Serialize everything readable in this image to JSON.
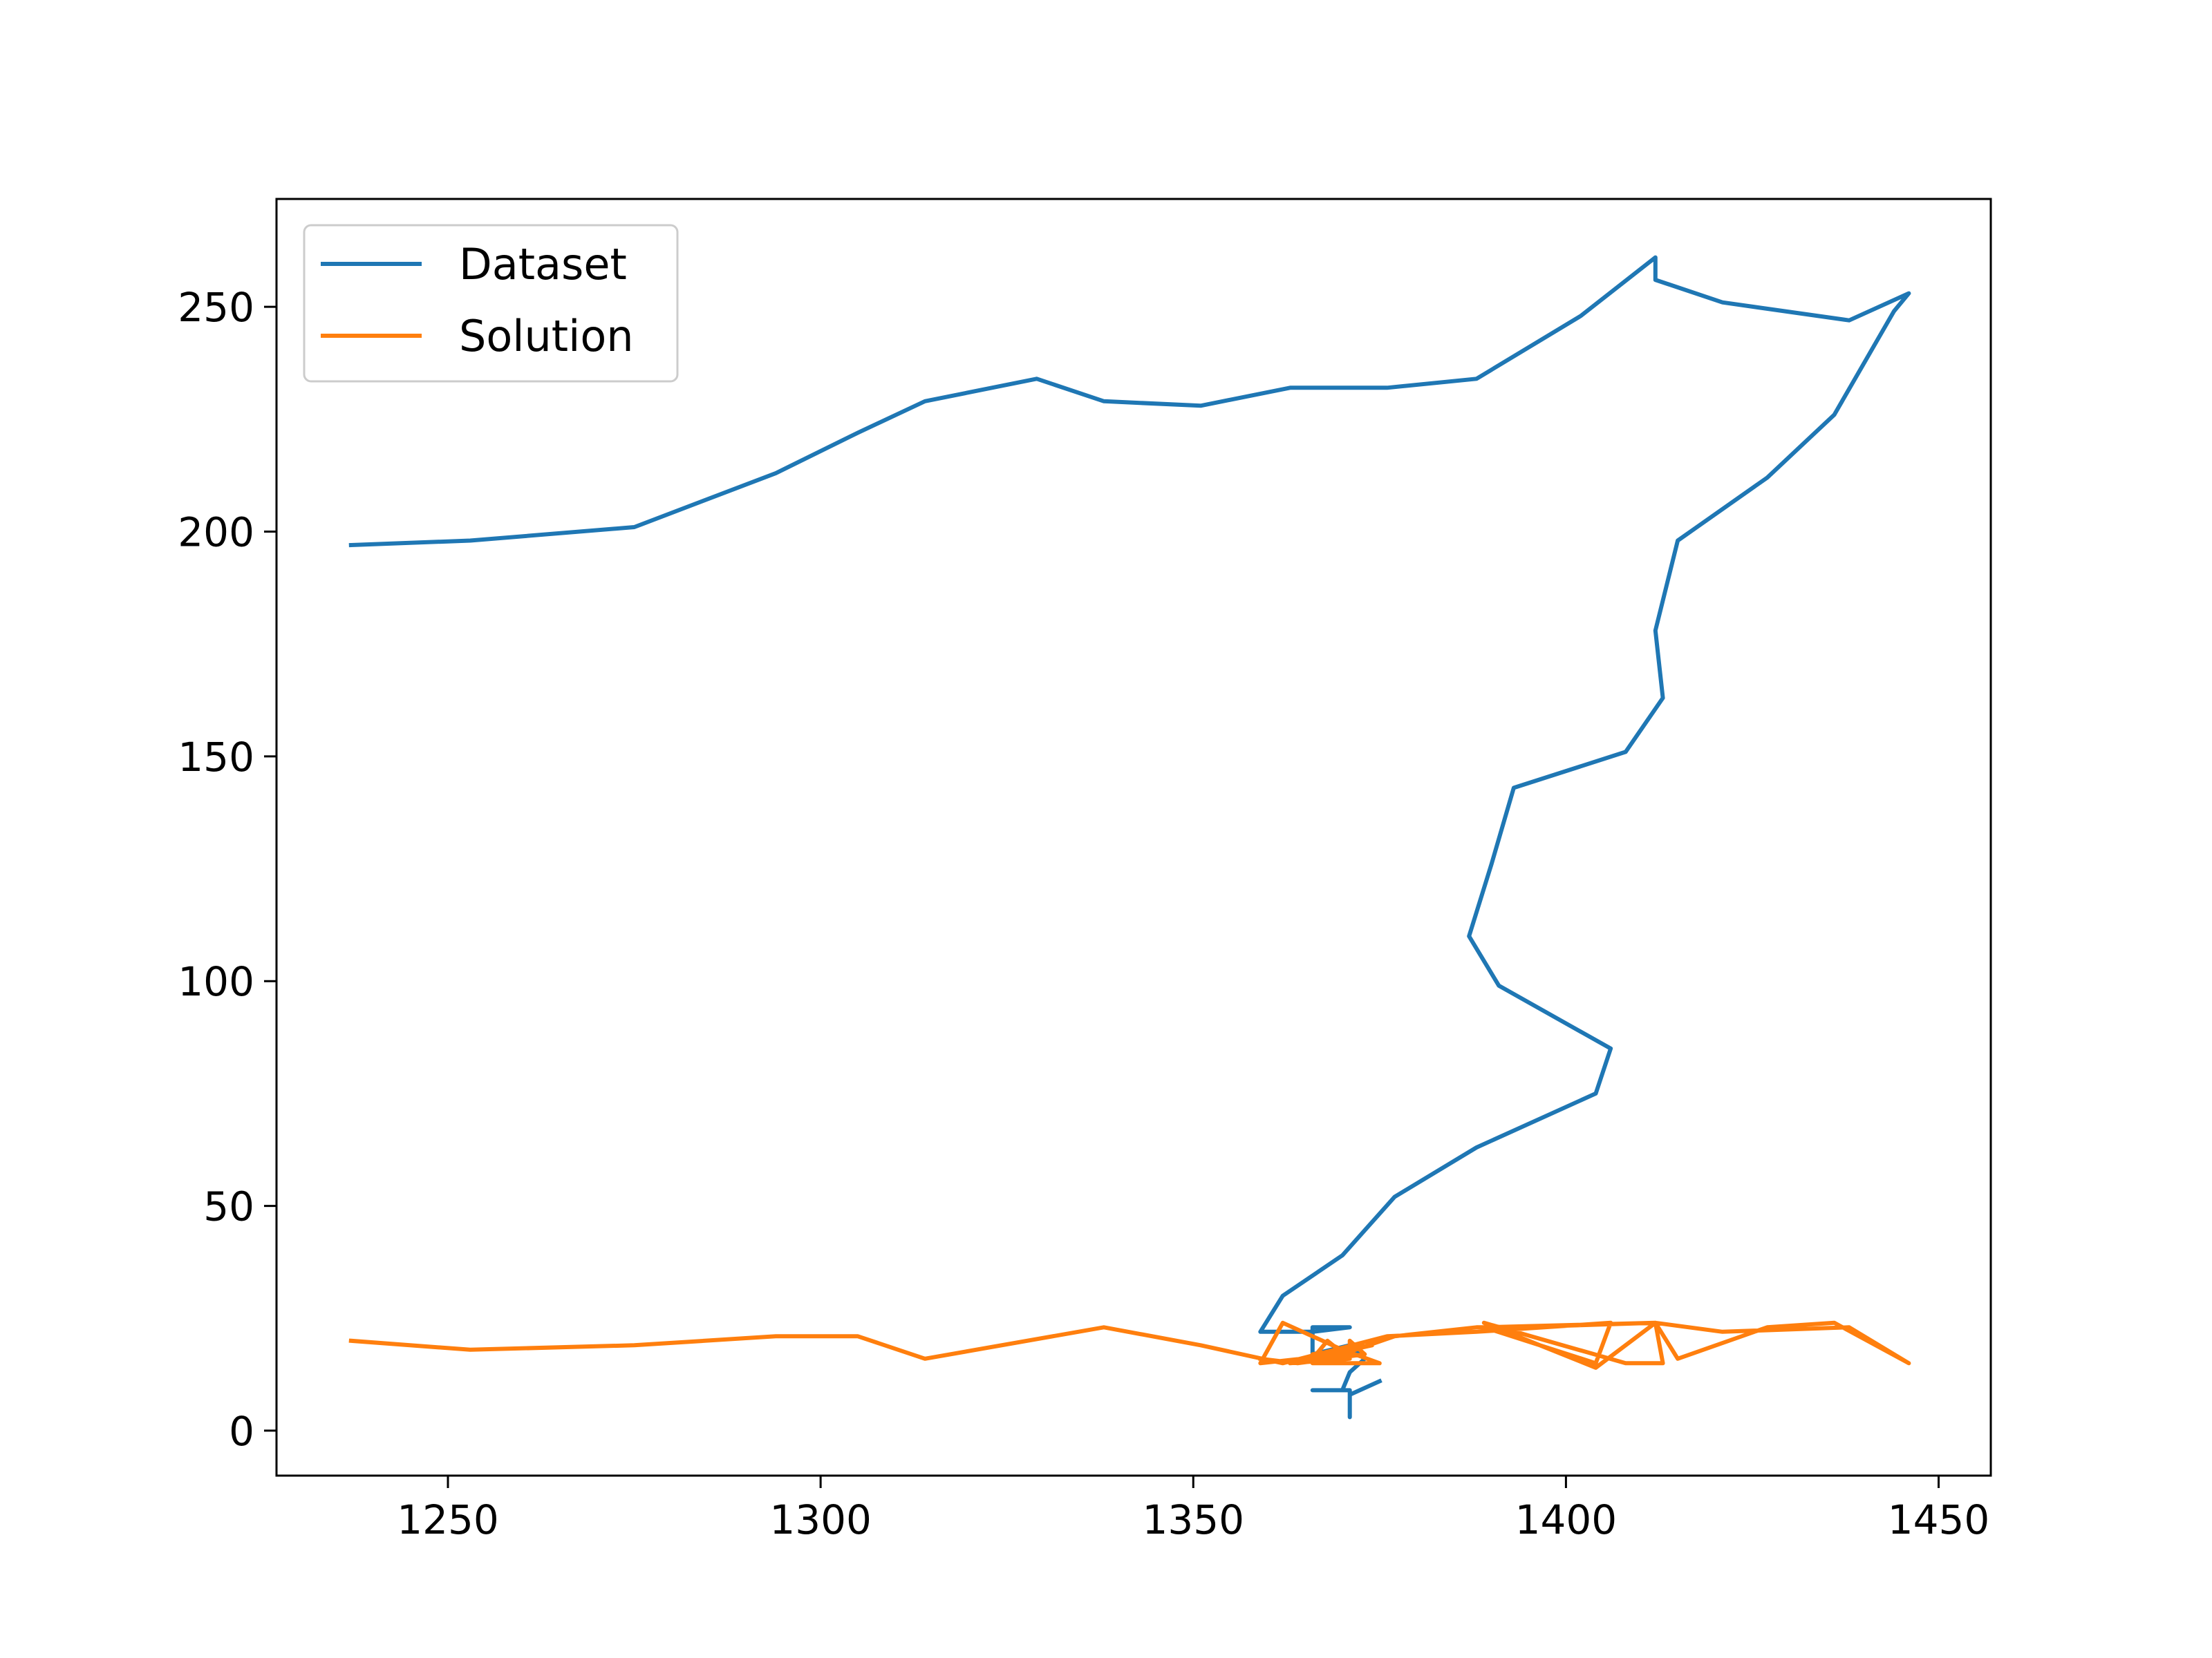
{
  "chart_data": {
    "type": "line",
    "title": "",
    "xlabel": "",
    "ylabel": "",
    "xlim": [
      1227,
      1457
    ],
    "ylim": [
      -10,
      274
    ],
    "xticks": [
      1250,
      1300,
      1350,
      1400,
      1450
    ],
    "yticks": [
      0,
      50,
      100,
      150,
      200,
      250
    ],
    "legend_position": "upper-left",
    "grid": false,
    "series": [
      {
        "name": "Dataset",
        "color": "#1f77b4",
        "points": [
          [
            1237,
            197
          ],
          [
            1253,
            198
          ],
          [
            1275,
            201
          ],
          [
            1294,
            213
          ],
          [
            1305,
            222
          ],
          [
            1314,
            229
          ],
          [
            1329,
            234
          ],
          [
            1338,
            229
          ],
          [
            1351,
            228
          ],
          [
            1363,
            232
          ],
          [
            1376,
            232
          ],
          [
            1388,
            234
          ],
          [
            1402,
            248
          ],
          [
            1412,
            261
          ],
          [
            1412,
            256
          ],
          [
            1421,
            251
          ],
          [
            1438,
            247
          ],
          [
            1446,
            253
          ],
          [
            1444,
            249
          ],
          [
            1436,
            226
          ],
          [
            1427,
            212
          ],
          [
            1415,
            198
          ],
          [
            1412,
            178
          ],
          [
            1413,
            163
          ],
          [
            1408,
            151
          ],
          [
            1393,
            143
          ],
          [
            1390,
            126
          ],
          [
            1387,
            110
          ],
          [
            1391,
            99
          ],
          [
            1406,
            85
          ],
          [
            1404,
            75
          ],
          [
            1388,
            63
          ],
          [
            1377,
            52
          ],
          [
            1370,
            39
          ],
          [
            1362,
            30
          ],
          [
            1359,
            22
          ],
          [
            1366,
            22
          ],
          [
            1371,
            23
          ],
          [
            1366,
            23
          ],
          [
            1366,
            17
          ],
          [
            1371,
            19
          ],
          [
            1373,
            16
          ],
          [
            1371,
            13
          ],
          [
            1370,
            9
          ],
          [
            1366,
            9
          ],
          [
            1371,
            9
          ],
          [
            1371,
            3
          ],
          [
            1371,
            8
          ],
          [
            1375,
            11
          ]
        ]
      },
      {
        "name": "Solution",
        "color": "#ff7f0e",
        "points": [
          [
            1237,
            20
          ],
          [
            1253,
            18
          ],
          [
            1275,
            19
          ],
          [
            1294,
            21
          ],
          [
            1305,
            21
          ],
          [
            1314,
            16
          ],
          [
            1338,
            23
          ],
          [
            1351,
            19
          ],
          [
            1362,
            15
          ],
          [
            1376,
            21
          ],
          [
            1388,
            22
          ],
          [
            1406,
            24
          ],
          [
            1404,
            15
          ],
          [
            1389,
            23
          ],
          [
            1412,
            24
          ],
          [
            1413,
            15
          ],
          [
            1408,
            15
          ],
          [
            1389,
            24
          ],
          [
            1404,
            14
          ],
          [
            1412,
            24
          ],
          [
            1421,
            22
          ],
          [
            1438,
            23
          ],
          [
            1446,
            15
          ],
          [
            1436,
            24
          ],
          [
            1427,
            23
          ],
          [
            1415,
            16
          ],
          [
            1412,
            24
          ],
          [
            1393,
            23
          ],
          [
            1388,
            23
          ],
          [
            1377,
            21
          ],
          [
            1370,
            17
          ],
          [
            1359,
            15
          ],
          [
            1362,
            24
          ],
          [
            1370,
            18
          ],
          [
            1375,
            15
          ],
          [
            1366,
            15
          ],
          [
            1371,
            18
          ],
          [
            1366,
            17
          ],
          [
            1374,
            19
          ],
          [
            1363,
            15
          ],
          [
            1371,
            16
          ],
          [
            1368,
            20
          ],
          [
            1366,
            16
          ],
          [
            1371,
            17
          ],
          [
            1371,
            20
          ],
          [
            1373,
            17
          ],
          [
            1364,
            15
          ],
          [
            1359,
            16
          ]
        ]
      }
    ]
  }
}
